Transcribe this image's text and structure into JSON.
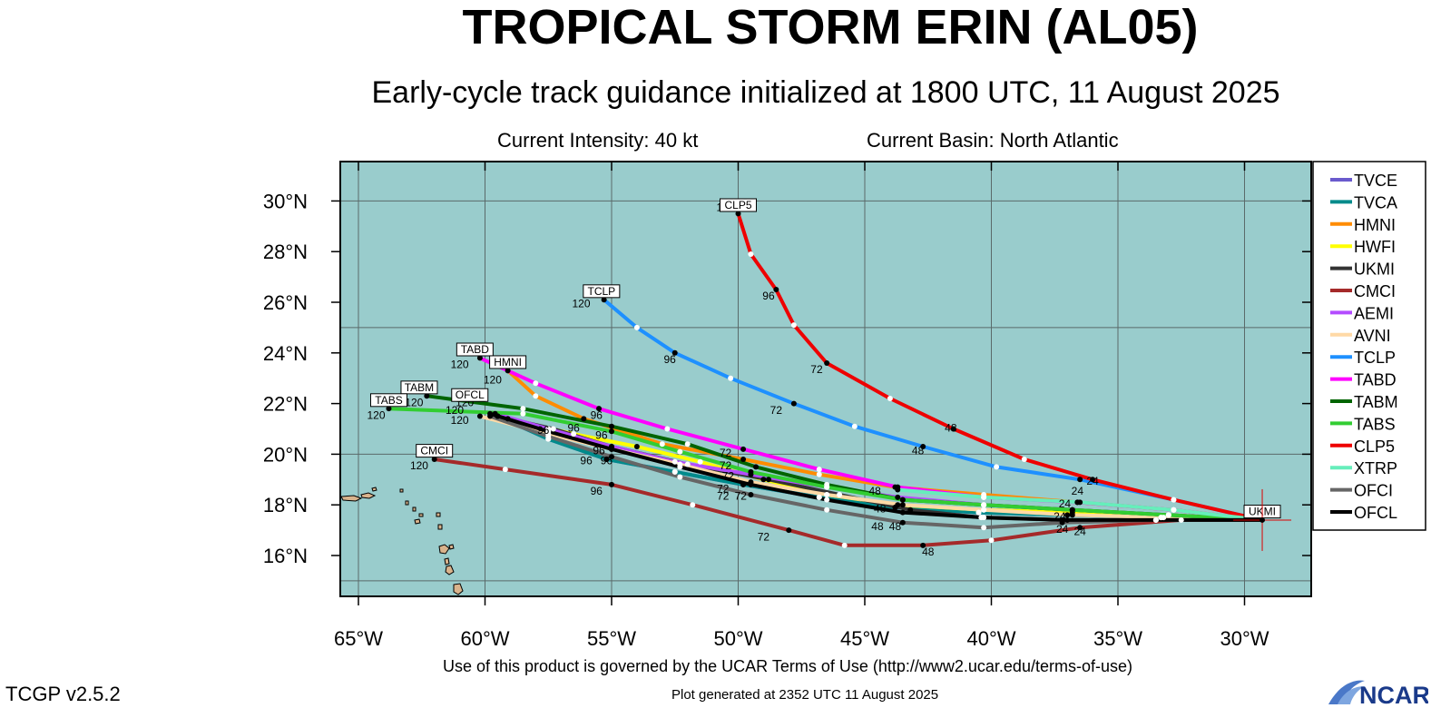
{
  "header": {
    "title": "TROPICAL STORM ERIN (AL05)",
    "subtitle": "Early-cycle track guidance initialized at 1800 UTC, 11 August 2025",
    "intensity": "Current Intensity: 40 kt",
    "basin": "Current Basin: North Atlantic"
  },
  "footer": {
    "terms": "Use of this product is governed by the UCAR Terms of Use (http://www2.ucar.edu/terms-of-use)",
    "version": "TCGP v2.5.2",
    "generated": "Plot generated at 2352 UTC   11 August 2025",
    "logo_text": "NCAR"
  },
  "chart_data": {
    "type": "line",
    "title": "TROPICAL STORM ERIN (AL05)",
    "lon_range": [
      -65.7,
      -27.6
    ],
    "lat_range": [
      14.3,
      31.5
    ],
    "lon_ticks": [
      -65,
      -60,
      -55,
      -50,
      -45,
      -40,
      -35,
      -30
    ],
    "lon_tick_labels": [
      "65°W",
      "60°W",
      "55°W",
      "50°W",
      "45°W",
      "40°W",
      "35°W",
      "30°W"
    ],
    "lat_ticks": [
      16,
      18,
      20,
      22,
      24,
      26,
      28,
      30
    ],
    "lat_tick_labels": [
      "16°N",
      "18°N",
      "20°N",
      "22°N",
      "24°N",
      "26°N",
      "28°N",
      "30°N"
    ],
    "grid_lons": [
      -65,
      -60,
      -55,
      -50,
      -45,
      -40,
      -35,
      -30
    ],
    "grid_lats": [
      15,
      20,
      25,
      30
    ],
    "ocean_color": "#99cccc",
    "land_color": "#d9b38c",
    "legend_position": "right",
    "initial_position": {
      "lon": -29.3,
      "lat": 17.4
    },
    "series": [
      {
        "name": "TVCE",
        "color": "#6a5acd",
        "lon": [
          -29.3,
          -33.3,
          -37.0,
          -40.5,
          -43.8,
          -46.8,
          -49.8,
          -52.5,
          -55.2,
          -57.5,
          -59.5
        ],
        "lat": [
          17.4,
          17.5,
          17.6,
          17.7,
          17.9,
          18.3,
          18.8,
          19.3,
          19.8,
          20.6,
          21.5
        ]
      },
      {
        "name": "TVCA",
        "color": "#008b8b",
        "lon": [
          -29.3,
          -33.3,
          -37.0,
          -40.5,
          -43.8,
          -46.8,
          -49.8,
          -52.5,
          -55.2,
          -57.5,
          -59.5
        ],
        "lat": [
          17.4,
          17.5,
          17.6,
          17.7,
          17.9,
          18.3,
          18.8,
          19.3,
          19.8,
          20.6,
          21.5
        ]
      },
      {
        "name": "HMNI",
        "color": "#ff8c00",
        "lon": [
          -29.3,
          -32.8,
          -36.6,
          -40.3,
          -43.8,
          -46.8,
          -49.8,
          -53.0,
          -56.1,
          -58.0,
          -59.1
        ],
        "lat": [
          17.4,
          17.8,
          18.1,
          18.4,
          18.7,
          19.2,
          19.8,
          20.4,
          21.4,
          22.3,
          23.3
        ]
      },
      {
        "name": "HWFI",
        "color": "#ffff00",
        "lon": [
          -29.3,
          -33.0,
          -36.8,
          -40.3,
          -43.7,
          -46.5,
          -49.0,
          -51.5,
          -54.0,
          -56.5,
          -59.1
        ],
        "lat": [
          17.4,
          17.6,
          17.7,
          17.8,
          18.0,
          18.4,
          19.0,
          19.7,
          20.3,
          20.8,
          21.4
        ]
      },
      {
        "name": "UKMI",
        "color": "#333333",
        "lon": [
          -29.3,
          -33.5,
          -37.2,
          -40.4,
          -43.2,
          -46.0,
          -48.8,
          -52.0,
          -55.0,
          -57.3,
          -59.5
        ],
        "lat": [
          17.4,
          17.4,
          17.4,
          17.5,
          17.8,
          18.4,
          19.0,
          19.6,
          20.3,
          21.0,
          21.5
        ]
      },
      {
        "name": "CMCI",
        "color": "#a52a2a",
        "lon": [
          -29.3,
          -32.5,
          -36.5,
          -40.0,
          -42.7,
          -45.8,
          -48.0,
          -51.8,
          -55.0,
          -59.2,
          -62.0
        ],
        "lat": [
          17.4,
          17.4,
          17.1,
          16.6,
          16.4,
          16.4,
          17.0,
          18.0,
          18.8,
          19.4,
          19.8
        ]
      },
      {
        "name": "AEMI",
        "color": "#b44cff",
        "lon": [
          -29.3,
          -33.0,
          -36.8,
          -40.3,
          -43.7,
          -46.5,
          -49.5,
          -52.5,
          -55.0,
          -57.5,
          -59.6
        ],
        "lat": [
          17.4,
          17.6,
          17.8,
          18.0,
          18.3,
          18.7,
          19.2,
          19.7,
          20.3,
          21.0,
          21.6
        ]
      },
      {
        "name": "AVNI",
        "color": "#ffd9a6",
        "lon": [
          -29.3,
          -33.2,
          -36.8,
          -40.3,
          -43.5,
          -46.5,
          -49.5,
          -52.3,
          -55.0,
          -57.5,
          -60.2
        ],
        "lat": [
          17.4,
          17.5,
          17.6,
          17.8,
          18.0,
          18.4,
          18.9,
          19.6,
          20.2,
          20.8,
          21.5
        ]
      },
      {
        "name": "TCLP",
        "color": "#1e90ff",
        "lon": [
          -29.3,
          -32.8,
          -36.5,
          -39.8,
          -42.7,
          -45.4,
          -47.8,
          -50.3,
          -52.5,
          -54.0,
          -55.3
        ],
        "lat": [
          17.4,
          18.2,
          19.0,
          19.5,
          20.3,
          21.1,
          22.0,
          23.0,
          24.0,
          25.0,
          26.1
        ]
      },
      {
        "name": "TABD",
        "color": "#ff00ff",
        "lon": [
          -29.3,
          -32.8,
          -36.6,
          -40.3,
          -43.7,
          -46.8,
          -49.8,
          -52.8,
          -55.5,
          -58.0,
          -60.2
        ],
        "lat": [
          17.4,
          17.8,
          18.1,
          18.3,
          18.7,
          19.4,
          20.2,
          21.0,
          21.8,
          22.8,
          23.8
        ]
      },
      {
        "name": "TABM",
        "color": "#006400",
        "lon": [
          -29.3,
          -33.0,
          -36.8,
          -40.3,
          -43.5,
          -46.5,
          -49.3,
          -52.0,
          -55.0,
          -58.5,
          -62.3
        ],
        "lat": [
          17.4,
          17.6,
          17.8,
          18.0,
          18.2,
          18.8,
          19.5,
          20.4,
          21.1,
          21.8,
          22.3
        ]
      },
      {
        "name": "TABS",
        "color": "#32cd32",
        "lon": [
          -29.3,
          -33.0,
          -36.8,
          -40.3,
          -43.5,
          -46.5,
          -49.5,
          -52.3,
          -55.0,
          -58.5,
          -63.8
        ],
        "lat": [
          17.4,
          17.6,
          17.8,
          18.0,
          18.2,
          18.7,
          19.3,
          20.1,
          20.9,
          21.6,
          21.8
        ]
      },
      {
        "name": "CLP5",
        "color": "#ee0000",
        "lon": [
          -29.3,
          -32.8,
          -36.0,
          -38.7,
          -41.5,
          -44.0,
          -46.5,
          -47.8,
          -48.5,
          -49.5,
          -50.0
        ],
        "lat": [
          17.4,
          18.2,
          19.0,
          19.8,
          21.0,
          22.2,
          23.6,
          25.1,
          26.5,
          27.9,
          29.5
        ]
      },
      {
        "name": "XTRP",
        "color": "#66eebb",
        "lon": [
          -29.3,
          -32.8,
          -36.5,
          -40.3,
          -43.7
        ],
        "lat": [
          17.4,
          17.8,
          18.1,
          18.3,
          18.6
        ]
      },
      {
        "name": "OFCI",
        "color": "#666666",
        "lon": [
          -29.3,
          -33.5,
          -37.2,
          -40.3,
          -43.5,
          -46.5,
          -49.5,
          -52.3,
          -55.0,
          -57.5,
          -59.8
        ],
        "lat": [
          17.4,
          17.4,
          17.3,
          17.1,
          17.3,
          17.8,
          18.4,
          19.1,
          19.9,
          20.7,
          21.5
        ]
      },
      {
        "name": "OFCL",
        "color": "#000000",
        "lon": [
          -29.3,
          -33.5,
          -37.0,
          -40.3,
          -43.5,
          -46.5,
          -49.5,
          -52.3,
          -55.0,
          -57.5,
          -59.8
        ],
        "lat": [
          17.4,
          17.4,
          17.4,
          17.5,
          17.7,
          18.2,
          18.8,
          19.5,
          20.2,
          20.9,
          21.6
        ]
      }
    ],
    "forecast_hour_labels": [
      {
        "text": "24",
        "lon": -36.6,
        "lat": 18.4
      },
      {
        "text": "24",
        "lon": -36.0,
        "lat": 18.8
      },
      {
        "text": "24",
        "lon": -37.1,
        "lat": 17.9
      },
      {
        "text": "24",
        "lon": -37.3,
        "lat": 17.4
      },
      {
        "text": "24",
        "lon": -37.2,
        "lat": 16.9
      },
      {
        "text": "24",
        "lon": -36.5,
        "lat": 16.8
      },
      {
        "text": "48",
        "lon": -41.6,
        "lat": 20.9
      },
      {
        "text": "48",
        "lon": -42.9,
        "lat": 20.0
      },
      {
        "text": "48",
        "lon": -44.6,
        "lat": 18.4
      },
      {
        "text": "48",
        "lon": -44.4,
        "lat": 17.7
      },
      {
        "text": "48",
        "lon": -44.5,
        "lat": 17.0
      },
      {
        "text": "48",
        "lon": -43.8,
        "lat": 17.0
      },
      {
        "text": "48",
        "lon": -42.5,
        "lat": 16.0
      },
      {
        "text": "72",
        "lon": -46.9,
        "lat": 23.2
      },
      {
        "text": "72",
        "lon": -48.5,
        "lat": 21.6
      },
      {
        "text": "72",
        "lon": -50.5,
        "lat": 19.9
      },
      {
        "text": "72",
        "lon": -50.5,
        "lat": 19.4
      },
      {
        "text": "72",
        "lon": -50.4,
        "lat": 19.0
      },
      {
        "text": "72",
        "lon": -50.6,
        "lat": 18.5
      },
      {
        "text": "72",
        "lon": -50.6,
        "lat": 18.2
      },
      {
        "text": "72",
        "lon": -49.9,
        "lat": 18.2
      },
      {
        "text": "72",
        "lon": -49.0,
        "lat": 16.6
      },
      {
        "text": "96",
        "lon": -48.8,
        "lat": 26.1
      },
      {
        "text": "96",
        "lon": -52.7,
        "lat": 23.6
      },
      {
        "text": "96",
        "lon": -55.6,
        "lat": 21.4
      },
      {
        "text": "96",
        "lon": -56.5,
        "lat": 20.9
      },
      {
        "text": "96",
        "lon": -57.7,
        "lat": 20.8
      },
      {
        "text": "96",
        "lon": -55.4,
        "lat": 20.6
      },
      {
        "text": "96",
        "lon": -55.5,
        "lat": 20.0
      },
      {
        "text": "96",
        "lon": -56.0,
        "lat": 19.6
      },
      {
        "text": "96",
        "lon": -55.2,
        "lat": 19.6
      },
      {
        "text": "96",
        "lon": -55.6,
        "lat": 18.4
      },
      {
        "text": "120",
        "lon": -50.5,
        "lat": 29.6
      },
      {
        "text": "120",
        "lon": -56.2,
        "lat": 25.8
      },
      {
        "text": "120",
        "lon": -61.0,
        "lat": 23.4
      },
      {
        "text": "120",
        "lon": -59.7,
        "lat": 22.8
      },
      {
        "text": "120",
        "lon": -62.8,
        "lat": 21.9
      },
      {
        "text": "120",
        "lon": -64.3,
        "lat": 21.4
      },
      {
        "text": "120",
        "lon": -61.2,
        "lat": 21.6
      },
      {
        "text": "120",
        "lon": -60.8,
        "lat": 21.9
      },
      {
        "text": "120",
        "lon": -61.0,
        "lat": 21.2
      },
      {
        "text": "120",
        "lon": -62.6,
        "lat": 19.4
      }
    ],
    "model_boxes": [
      {
        "text": "CLP5",
        "lon": -50.0,
        "lat": 29.8
      },
      {
        "text": "TCLP",
        "lon": -55.4,
        "lat": 26.4
      },
      {
        "text": "TABD",
        "lon": -60.4,
        "lat": 24.1
      },
      {
        "text": "HMNI",
        "lon": -59.1,
        "lat": 23.6
      },
      {
        "text": "TABM",
        "lon": -62.6,
        "lat": 22.6
      },
      {
        "text": "TABS",
        "lon": -63.8,
        "lat": 22.1
      },
      {
        "text": "OFCL",
        "lon": -60.6,
        "lat": 22.3
      },
      {
        "text": "CMCI",
        "lon": -62.0,
        "lat": 20.1
      },
      {
        "text": "UKMI",
        "lon": -29.3,
        "lat": 17.7
      }
    ]
  }
}
